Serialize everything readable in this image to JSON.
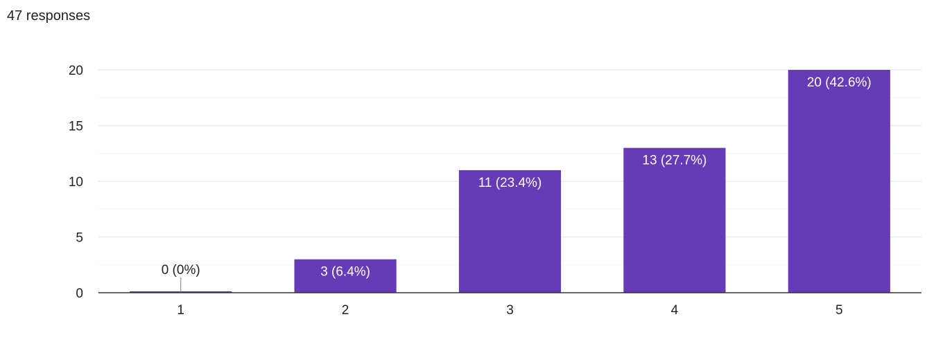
{
  "header": {
    "response_count": "47 responses"
  },
  "chart_data": {
    "type": "bar",
    "categories": [
      "1",
      "2",
      "3",
      "4",
      "5"
    ],
    "values": [
      0,
      3,
      11,
      13,
      20
    ],
    "data_labels": [
      "0 (0%)",
      "3 (6.4%)",
      "11 (23.4%)",
      "13 (27.7%)",
      "20 (42.6%)"
    ],
    "y_ticks": [
      0,
      5,
      10,
      15,
      20
    ],
    "ylim": [
      0,
      20
    ],
    "title": "",
    "xlabel": "",
    "ylabel": "",
    "grid": true,
    "bar_color": "#673ab7",
    "grid_color": "#ebebeb",
    "minor_grid_color": "#f6f6f6",
    "axis_color": "#333333"
  }
}
